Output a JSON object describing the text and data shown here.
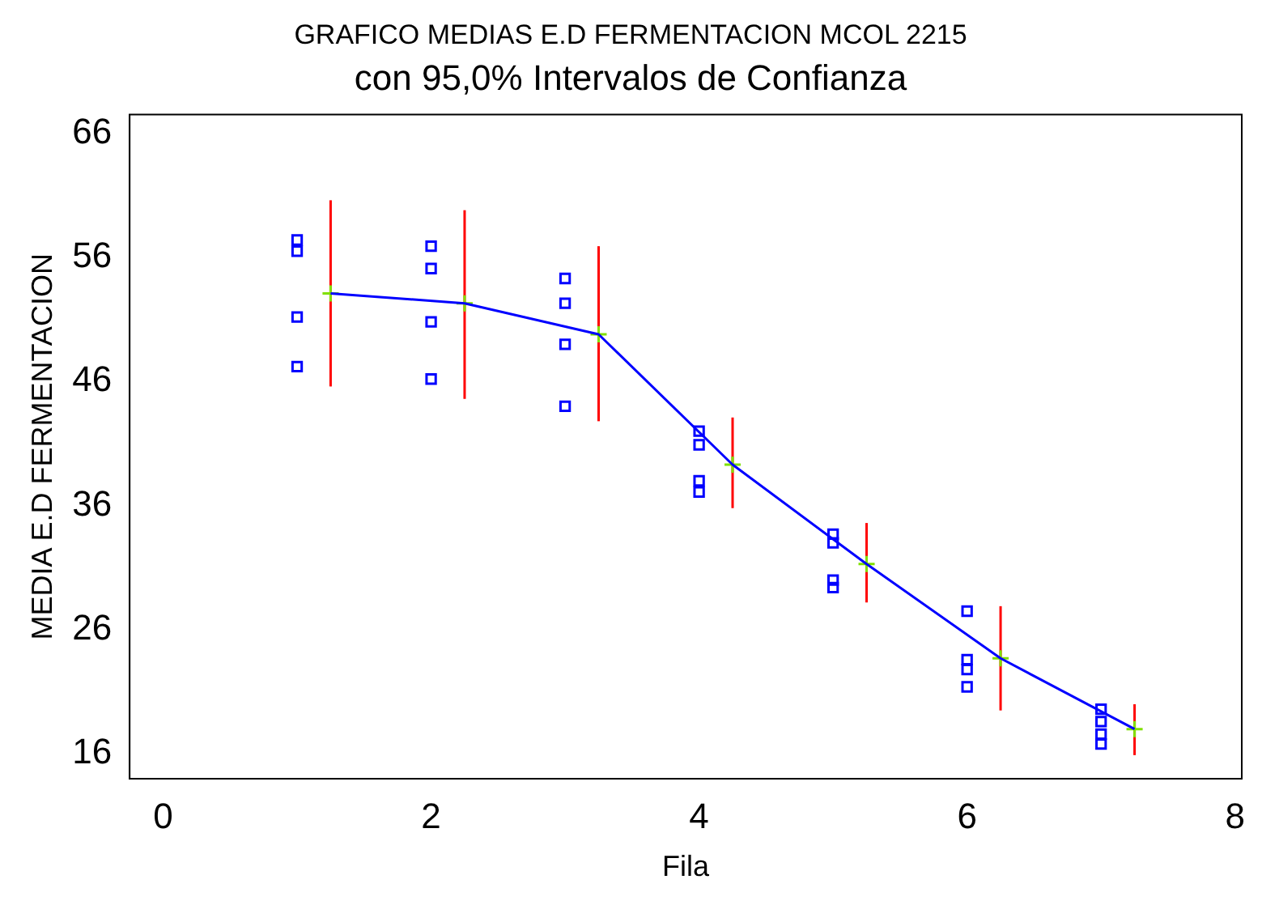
{
  "chart_data": {
    "type": "scatter",
    "title": "GRAFICO MEDIAS E.D FERMENTACION MCOL 2215",
    "subtitle": "con 95,0% Intervalos de Confianza",
    "xlabel": "Fila",
    "ylabel": "MEDIA E.D FERMENTACION",
    "xlim": [
      -0.25,
      8.05
    ],
    "xticks": [
      0,
      2,
      4,
      6,
      8
    ],
    "ylim": [
      14,
      67.5
    ],
    "yticks": [
      16,
      26,
      36,
      46,
      56,
      66
    ],
    "grid": false,
    "legend": false,
    "series": [
      {
        "marker": "square",
        "color": "#0000ff",
        "x": [
          1,
          1,
          1,
          1,
          2,
          2,
          2,
          2,
          3,
          3,
          3,
          3,
          4,
          4,
          4,
          4,
          5,
          5,
          5,
          5,
          6,
          6,
          6,
          6,
          7,
          7,
          7,
          7
        ],
        "values": [
          57.4,
          56.5,
          51.2,
          47.2,
          56.9,
          55.1,
          50.8,
          46.2,
          54.3,
          52.3,
          49.0,
          44.0,
          42.0,
          40.9,
          38.0,
          37.1,
          33.7,
          33.0,
          30.0,
          29.4,
          27.5,
          23.6,
          22.8,
          21.4,
          19.6,
          18.6,
          17.6,
          16.8
        ]
      },
      {
        "type": "line",
        "marker": "none",
        "color": "#0000ff",
        "x": [
          1.25,
          2.25,
          3.25,
          4.25,
          5.25,
          6.25,
          7.25
        ],
        "values": [
          53.1,
          52.3,
          49.8,
          39.3,
          31.3,
          23.7,
          18.0
        ]
      },
      {
        "marker": "cross",
        "color": "#80e000",
        "x": [
          1.25,
          2.25,
          3.25,
          4.25,
          5.25,
          6.25,
          7.25
        ],
        "values": [
          53.1,
          52.3,
          49.8,
          39.3,
          31.3,
          23.7,
          18.0
        ],
        "errors": [
          [
            45.6,
            60.6
          ],
          [
            44.6,
            59.8
          ],
          [
            42.8,
            56.9
          ],
          [
            35.8,
            43.1
          ],
          [
            28.2,
            34.6
          ],
          [
            19.5,
            27.9
          ],
          [
            15.9,
            20.0
          ]
        ]
      }
    ]
  }
}
